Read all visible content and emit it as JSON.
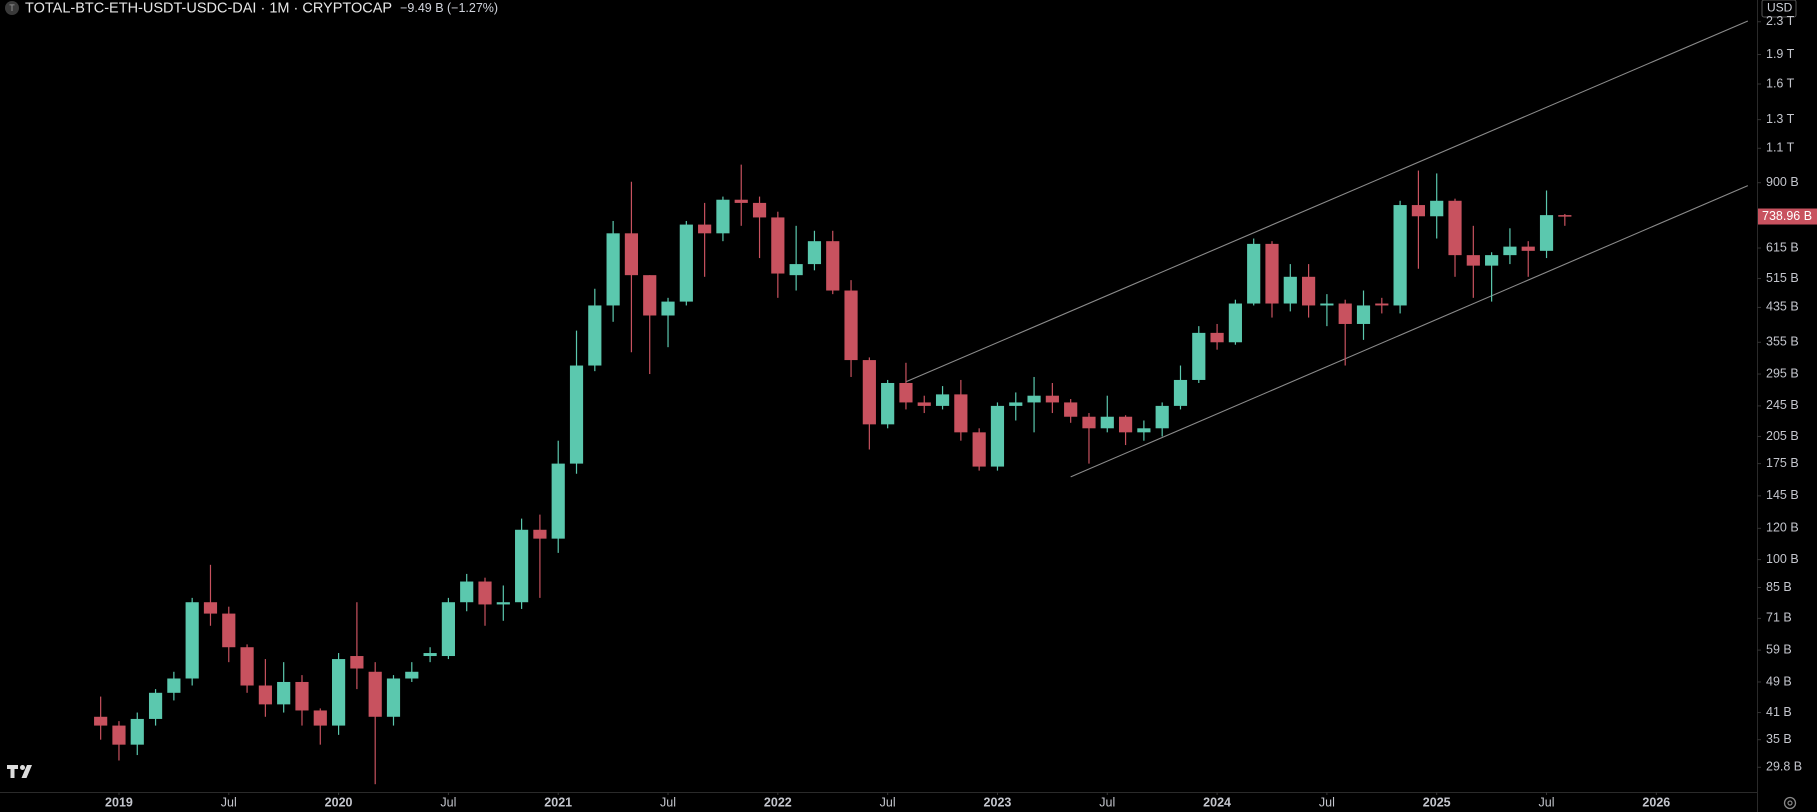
{
  "chart_data": {
    "type": "candlestick",
    "symbol_icon": "T",
    "title": "TOTAL-BTC-ETH-USDT-USDC-DAI · 1M · CRYPTOCAP",
    "change": "−9.49 B (−1.27%)",
    "currency": "USD",
    "log_scale": true,
    "grid": false,
    "up_color": "#5bc8ae",
    "down_color": "#c8525f",
    "x": [
      "2018-12",
      "2019-01",
      "2019-02",
      "2019-03",
      "2019-04",
      "2019-05",
      "2019-06",
      "2019-07",
      "2019-08",
      "2019-09",
      "2019-10",
      "2019-11",
      "2019-12",
      "2020-01",
      "2020-02",
      "2020-03",
      "2020-04",
      "2020-05",
      "2020-06",
      "2020-07",
      "2020-08",
      "2020-09",
      "2020-10",
      "2020-11",
      "2020-12",
      "2021-01",
      "2021-02",
      "2021-03",
      "2021-04",
      "2021-05",
      "2021-06",
      "2021-07",
      "2021-08",
      "2021-09",
      "2021-10",
      "2021-11",
      "2021-12",
      "2022-01",
      "2022-02",
      "2022-03",
      "2022-04",
      "2022-05",
      "2022-06",
      "2022-07",
      "2022-08",
      "2022-09",
      "2022-10",
      "2022-11",
      "2022-12",
      "2023-01",
      "2023-02",
      "2023-03",
      "2023-04",
      "2023-05",
      "2023-06",
      "2023-07",
      "2023-08",
      "2023-09",
      "2023-10",
      "2023-11",
      "2023-12",
      "2024-01",
      "2024-02",
      "2024-03",
      "2024-04",
      "2024-05",
      "2024-06",
      "2024-07",
      "2024-08",
      "2024-09",
      "2024-10",
      "2024-11",
      "2024-12",
      "2025-01",
      "2025-02",
      "2025-03",
      "2025-04",
      "2025-05",
      "2025-06",
      "2025-07",
      "2025-08"
    ],
    "open": [
      40,
      38,
      34,
      39.5,
      46,
      50,
      78,
      73,
      60,
      48,
      43,
      49,
      41.5,
      38,
      57,
      52,
      40,
      50,
      57,
      57,
      78,
      88,
      77,
      78,
      119,
      113,
      175,
      310,
      440,
      670,
      525,
      415,
      450,
      705,
      670,
      815,
      800,
      735,
      525,
      560,
      640,
      480,
      320,
      220,
      280,
      250,
      245,
      262,
      210,
      172,
      245,
      250,
      260,
      250,
      230,
      215,
      230,
      210,
      215,
      245,
      285,
      375,
      355,
      445,
      630,
      445,
      520,
      440,
      445,
      395,
      445,
      440,
      790,
      740,
      810,
      590,
      555,
      590,
      620,
      605,
      745
    ],
    "high": [
      45,
      39,
      41,
      47,
      52,
      80,
      97,
      76,
      61,
      56,
      55,
      51,
      42,
      58,
      78,
      55,
      51,
      55,
      60,
      80,
      92,
      90,
      86,
      127,
      130,
      200,
      380,
      485,
      720,
      905,
      525,
      460,
      720,
      800,
      830,
      1000,
      830,
      760,
      700,
      680,
      680,
      510,
      325,
      285,
      315,
      260,
      275,
      285,
      215,
      250,
      265,
      290,
      280,
      255,
      235,
      260,
      232,
      225,
      250,
      310,
      390,
      395,
      455,
      650,
      640,
      560,
      560,
      470,
      455,
      480,
      460,
      810,
      966,
      950,
      820,
      700,
      600,
      690,
      640,
      860,
      750
    ],
    "low": [
      35,
      31,
      32,
      38,
      44,
      48,
      68,
      55,
      46,
      40,
      41,
      38,
      34,
      36,
      47,
      27,
      38,
      49,
      55,
      56,
      74,
      68,
      70,
      75,
      80,
      104,
      165,
      300,
      400,
      335,
      295,
      345,
      440,
      520,
      640,
      700,
      580,
      460,
      480,
      540,
      470,
      290,
      190,
      215,
      240,
      235,
      240,
      200,
      168,
      168,
      225,
      210,
      235,
      222,
      175,
      210,
      195,
      200,
      205,
      240,
      280,
      340,
      350,
      440,
      410,
      425,
      410,
      390,
      310,
      360,
      420,
      420,
      545,
      650,
      520,
      460,
      450,
      560,
      520,
      580,
      700
    ],
    "close": [
      38,
      34,
      39.5,
      46,
      50,
      78,
      73,
      60,
      48,
      43,
      49,
      41.5,
      38,
      56,
      53,
      40,
      50,
      52,
      58,
      78,
      88,
      77,
      78,
      119,
      113,
      175,
      310,
      440,
      670,
      525,
      415,
      450,
      705,
      670,
      815,
      800,
      735,
      530,
      560,
      640,
      480,
      320,
      220,
      280,
      250,
      245,
      262,
      210,
      172,
      245,
      250,
      260,
      250,
      230,
      215,
      230,
      210,
      215,
      245,
      285,
      375,
      355,
      445,
      630,
      445,
      520,
      440,
      445,
      395,
      440,
      440,
      790,
      740,
      810,
      590,
      555,
      590,
      620,
      605,
      745,
      739
    ],
    "xlim": [
      "2018-07",
      "2026-06"
    ],
    "xticks": [
      {
        "value": "2019-01",
        "label": "2019"
      },
      {
        "value": "2019-07",
        "label": "Jul"
      },
      {
        "value": "2020-01",
        "label": "2020"
      },
      {
        "value": "2020-07",
        "label": "Jul"
      },
      {
        "value": "2021-01",
        "label": "2021"
      },
      {
        "value": "2021-07",
        "label": "Jul"
      },
      {
        "value": "2022-01",
        "label": "2022"
      },
      {
        "value": "2022-07",
        "label": "Jul"
      },
      {
        "value": "2023-01",
        "label": "2023"
      },
      {
        "value": "2023-07",
        "label": "Jul"
      },
      {
        "value": "2024-01",
        "label": "2024"
      },
      {
        "value": "2024-07",
        "label": "Jul"
      },
      {
        "value": "2025-01",
        "label": "2025"
      },
      {
        "value": "2025-07",
        "label": "Jul"
      },
      {
        "value": "2026-01",
        "label": "2026"
      }
    ],
    "ylim": [
      25.8,
      2611
    ],
    "yticks": [
      {
        "value": 2300,
        "label": "2.3 T"
      },
      {
        "value": 1900,
        "label": "1.9 T"
      },
      {
        "value": 1600,
        "label": "1.6 T"
      },
      {
        "value": 1300,
        "label": "1.3 T"
      },
      {
        "value": 1100,
        "label": "1.1 T"
      },
      {
        "value": 900,
        "label": "900 B"
      },
      {
        "value": 615,
        "label": "615 B"
      },
      {
        "value": 515,
        "label": "515 B"
      },
      {
        "value": 435,
        "label": "435 B"
      },
      {
        "value": 355,
        "label": "355 B"
      },
      {
        "value": 295,
        "label": "295 B"
      },
      {
        "value": 245,
        "label": "245 B"
      },
      {
        "value": 205,
        "label": "205 B"
      },
      {
        "value": 175,
        "label": "175 B"
      },
      {
        "value": 145,
        "label": "145 B"
      },
      {
        "value": 120,
        "label": "120 B"
      },
      {
        "value": 100,
        "label": "100 B"
      },
      {
        "value": 85,
        "label": "85 B"
      },
      {
        "value": 71,
        "label": "71 B"
      },
      {
        "value": 59,
        "label": "59 B"
      },
      {
        "value": 49,
        "label": "49 B"
      },
      {
        "value": 41,
        "label": "41 B"
      },
      {
        "value": 35,
        "label": "35 B"
      },
      {
        "value": 29.8,
        "label": "29.8 B"
      }
    ],
    "last_price": {
      "value": 738.96,
      "label": "738.96 B"
    },
    "trendlines": [
      {
        "x": [
          "2022-08",
          "2026-06"
        ],
        "y": [
          282,
          2310
        ]
      },
      {
        "x": [
          "2023-05",
          "2026-06"
        ],
        "y": [
          162,
          885
        ]
      }
    ]
  }
}
